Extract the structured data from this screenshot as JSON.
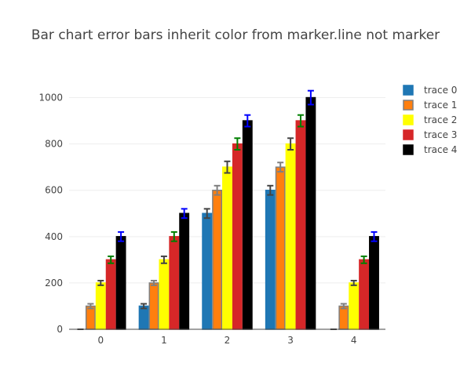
{
  "chart_data": {
    "type": "bar",
    "title": "Bar chart error bars inherit color from marker.line not marker",
    "xlabel": "",
    "ylabel": "",
    "categories": [
      "0",
      "1",
      "2",
      "3",
      "4"
    ],
    "ylim": [
      0,
      1100
    ],
    "yticks": [
      0,
      200,
      400,
      600,
      800,
      1000
    ],
    "grid": true,
    "legend_position": "right",
    "series": [
      {
        "name": "trace 0",
        "values": [
          0,
          100,
          500,
          600,
          0
        ],
        "errors": [
          0,
          10,
          20,
          20,
          0
        ],
        "fill": "#1f77b4",
        "line": "#1f77b4",
        "error_color": "#444444"
      },
      {
        "name": "trace 1",
        "values": [
          100,
          200,
          600,
          700,
          100
        ],
        "errors": [
          10,
          10,
          20,
          20,
          10
        ],
        "fill": "#ff7f0e",
        "line": "#7f7f7f",
        "error_color": "#7f7f7f"
      },
      {
        "name": "trace 2",
        "values": [
          200,
          300,
          700,
          800,
          200
        ],
        "errors": [
          10,
          15,
          25,
          25,
          10
        ],
        "fill": "#ffff00",
        "line": "#ffff00",
        "error_color": "#444444"
      },
      {
        "name": "trace 3",
        "values": [
          300,
          400,
          800,
          900,
          300
        ],
        "errors": [
          15,
          20,
          25,
          25,
          15
        ],
        "fill": "#d62728",
        "line": "#d62728",
        "error_color": "#008000"
      },
      {
        "name": "trace 4",
        "values": [
          400,
          500,
          900,
          1000,
          400
        ],
        "errors": [
          20,
          20,
          25,
          30,
          20
        ],
        "fill": "#000000",
        "line": "#000000",
        "error_color": "#0000ff"
      }
    ]
  }
}
